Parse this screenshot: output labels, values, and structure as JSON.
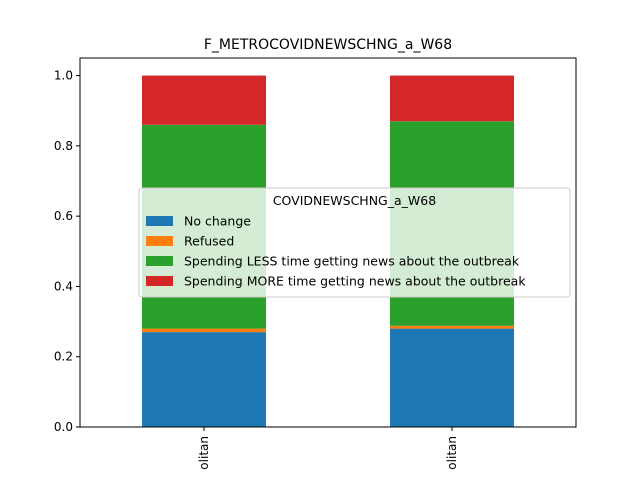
{
  "chart_data": {
    "type": "bar",
    "stacked": true,
    "title": "F_METROCOVIDNEWSCHNG_a_W68",
    "xlabel": "",
    "ylabel": "",
    "categories": [
      "olitan",
      "olitan"
    ],
    "ylim": [
      0,
      1.05
    ],
    "yticks": [
      0.0,
      0.2,
      0.4,
      0.6,
      0.8,
      1.0
    ],
    "ytick_labels": [
      "0.0",
      "0.2",
      "0.4",
      "0.6",
      "0.8",
      "1.0"
    ],
    "grid": false,
    "legend": {
      "title": "COVIDNEWSCHNG_a_W68",
      "placement": "center",
      "entries": [
        "No change",
        "Refused",
        "Spending LESS time getting news about the outbreak",
        "Spending MORE time getting news about the outbreak"
      ]
    },
    "series": [
      {
        "name": "No change",
        "color": "#1f77b4",
        "values": [
          0.27,
          0.28
        ]
      },
      {
        "name": "Refused",
        "color": "#ff7f0e",
        "values": [
          0.01,
          0.008
        ]
      },
      {
        "name": "Spending LESS time getting news about the outbreak",
        "color": "#2ca02c",
        "values": [
          0.58,
          0.582
        ]
      },
      {
        "name": "Spending MORE time getting news about the outbreak",
        "color": "#d62728",
        "values": [
          0.14,
          0.13
        ]
      }
    ]
  }
}
